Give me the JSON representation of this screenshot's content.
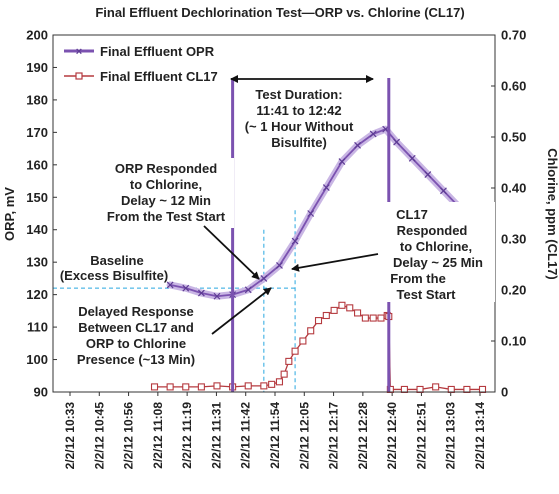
{
  "chart_data": {
    "type": "line",
    "title": "Final Effluent Dechlorination Test—ORP vs. Chlorine (CL17)",
    "ylabel_left": "ORP, mV",
    "ylabel_right": "Chlorine, ppm (CL17)",
    "ylim_left": [
      90,
      200
    ],
    "ylim_right": [
      0,
      0.7
    ],
    "yticks_left": [
      "90",
      "100",
      "110",
      "120",
      "130",
      "140",
      "150",
      "160",
      "170",
      "180",
      "190",
      "200"
    ],
    "yticks_right": [
      "0",
      "0.10",
      "0.20",
      "0.30",
      "0.40",
      "0.50",
      "0.60",
      "0.70"
    ],
    "xticks": [
      "2/2/12 10:33",
      "2/2/12 10:45",
      "2/2/12 10:56",
      "2/2/12 11:08",
      "2/2/12 11:19",
      "2/2/12 11:31",
      "2/2/12 11:42",
      "2/2/12 11:54",
      "2/2/12 12:05",
      "2/2/12 12:17",
      "2/2/12 12:28",
      "2/2/12 12:40",
      "2/2/12 12:51",
      "2/2/12 13:03",
      "2/2/12 13:14"
    ],
    "legend_position": "top-left",
    "colors": {
      "orp": "#7b52b0",
      "orp_fill": "#c9b6e4",
      "cl17": "#b53a3f",
      "event_line": "#7b52b0",
      "dash": "#29a8e0"
    },
    "series": [
      {
        "name": "Final Effluent OPR",
        "axis": "left",
        "points": [
          [
            11.3,
            123
          ],
          [
            11.4,
            122
          ],
          [
            11.5,
            120.5
          ],
          [
            11.6,
            119.5
          ],
          [
            11.7,
            120
          ],
          [
            11.8,
            121.5
          ],
          [
            11.9,
            125
          ],
          [
            12.0,
            129
          ],
          [
            12.1,
            136.5
          ],
          [
            12.2,
            145
          ],
          [
            12.3,
            153
          ],
          [
            12.4,
            161
          ],
          [
            12.5,
            166
          ],
          [
            12.6,
            169.5
          ],
          [
            12.68,
            171
          ],
          [
            12.75,
            167
          ],
          [
            12.85,
            162
          ],
          [
            12.95,
            157
          ],
          [
            13.05,
            152
          ],
          [
            13.15,
            147
          ],
          [
            13.25,
            143
          ],
          [
            13.3,
            142
          ]
        ]
      },
      {
        "name": "Final Effluent CL17",
        "axis": "right",
        "points": [
          [
            11.2,
            0.01
          ],
          [
            11.3,
            0.01
          ],
          [
            11.4,
            0.01
          ],
          [
            11.5,
            0.01
          ],
          [
            11.6,
            0.012
          ],
          [
            11.7,
            0.01
          ],
          [
            11.8,
            0.012
          ],
          [
            11.9,
            0.012
          ],
          [
            11.95,
            0.015
          ],
          [
            12.0,
            0.02
          ],
          [
            12.03,
            0.035
          ],
          [
            12.06,
            0.06
          ],
          [
            12.1,
            0.08
          ],
          [
            12.15,
            0.1
          ],
          [
            12.2,
            0.12
          ],
          [
            12.25,
            0.14
          ],
          [
            12.3,
            0.15
          ],
          [
            12.35,
            0.16
          ],
          [
            12.4,
            0.17
          ],
          [
            12.45,
            0.165
          ],
          [
            12.5,
            0.155
          ],
          [
            12.55,
            0.145
          ],
          [
            12.6,
            0.145
          ],
          [
            12.65,
            0.145
          ],
          [
            12.69,
            0.15
          ],
          [
            12.7,
            0.148
          ],
          [
            12.71,
            0.005
          ],
          [
            12.8,
            0.005
          ],
          [
            12.9,
            0.005
          ],
          [
            13.0,
            0.01
          ],
          [
            13.1,
            0.005
          ],
          [
            13.2,
            0.005
          ],
          [
            13.3,
            0.005
          ]
        ]
      }
    ],
    "events": [
      {
        "label": "Test start",
        "x": 11.7
      },
      {
        "label": "Test end",
        "x": 12.7
      }
    ],
    "annotations": {
      "test_duration": [
        "Test Duration:",
        "11:41 to 12:42",
        "(~ 1 Hour Without",
        "Bisulfite)"
      ],
      "orp_responded": [
        "ORP Responded",
        "to Chlorine,",
        "Delay ~ 12 Min",
        "From the Test Start"
      ],
      "cl17_responded": [
        "CL17",
        "Responded",
        "to Chlorine,",
        "Delay ~ 25 Min",
        "From the",
        "Test Start"
      ],
      "baseline": [
        "Baseline",
        "(Excess Bisulfite)"
      ],
      "delayed": [
        "Delayed Response",
        "Between CL17 and",
        "ORP to Chlorine",
        "Presence (~13 Min)"
      ]
    }
  }
}
